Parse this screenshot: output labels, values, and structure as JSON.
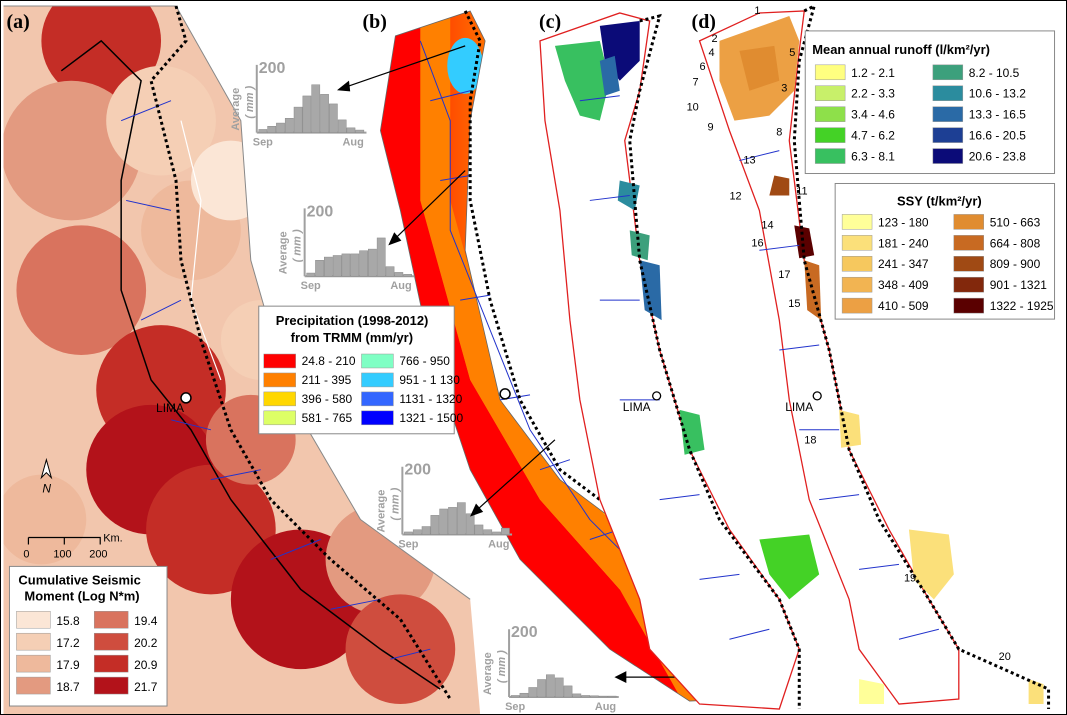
{
  "panels": {
    "a": {
      "label": "(a)"
    },
    "b": {
      "label": "(b)"
    },
    "c": {
      "label": "(c)"
    },
    "d": {
      "label": "(d)"
    }
  },
  "city": {
    "lima_a": "LIMA",
    "lima_c": "LIMA",
    "lima_d": "LIMA"
  },
  "north_arrow": {
    "label": "N"
  },
  "scale_bar": {
    "ticks": [
      "0",
      "100",
      "200"
    ],
    "unit": "Km."
  },
  "seismic_legend": {
    "title_line1": "Cumulative Seismic",
    "title_line2": "Moment (Log N*m)",
    "items": [
      {
        "label": "15.8",
        "color": "#fbe6d6"
      },
      {
        "label": "19.4",
        "color": "#d9735e"
      },
      {
        "label": "17.2",
        "color": "#f5cfb5"
      },
      {
        "label": "20.2",
        "color": "#cf4d3e"
      },
      {
        "label": "17.9",
        "color": "#eeb99c"
      },
      {
        "label": "20.9",
        "color": "#c42d26"
      },
      {
        "label": "18.7",
        "color": "#e39a80"
      },
      {
        "label": "21.7",
        "color": "#b3121a"
      }
    ]
  },
  "precip_legend": {
    "title_line1": "Precipitation (1998-2012)",
    "title_line2": "from TRMM (mm/yr)",
    "items": [
      {
        "label": "24.8 - 210",
        "color": "#ff0000"
      },
      {
        "label": "766 - 950",
        "color": "#7fffc4"
      },
      {
        "label": "211 - 395",
        "color": "#ff8000"
      },
      {
        "label": "951 - 1 130",
        "color": "#33ccff"
      },
      {
        "label": "396 - 580",
        "color": "#ffd700"
      },
      {
        "label": "1131 - 1320",
        "color": "#3366ff"
      },
      {
        "label": "581 - 765",
        "color": "#ddff66"
      },
      {
        "label": "1321 - 1500",
        "color": "#0000ff"
      }
    ]
  },
  "runoff_legend": {
    "title": "Mean annual runoff (l/km²/yr)",
    "items": [
      {
        "label": "1.2 - 2.1",
        "color": "#ffff80"
      },
      {
        "label": "8.2 - 10.5",
        "color": "#3ca07c"
      },
      {
        "label": "2.2 - 3.3",
        "color": "#c8f06a"
      },
      {
        "label": "10.6 - 13.2",
        "color": "#2b8c9e"
      },
      {
        "label": "3.4 - 4.6",
        "color": "#8ee04a"
      },
      {
        "label": "13.3 - 16.5",
        "color": "#2a6aa6"
      },
      {
        "label": "4.7 - 6.2",
        "color": "#44d226"
      },
      {
        "label": "16.6 - 20.5",
        "color": "#1d3f94"
      },
      {
        "label": "6.3 - 8.1",
        "color": "#38c060"
      },
      {
        "label": "20.6 - 23.8",
        "color": "#0b0b78"
      }
    ]
  },
  "ssy_legend": {
    "title": "SSY (t/km²/yr)",
    "items": [
      {
        "label": "123 - 180",
        "color": "#ffff99"
      },
      {
        "label": "510 - 663",
        "color": "#e08c30"
      },
      {
        "label": "181 - 240",
        "color": "#fbe07a"
      },
      {
        "label": "664 - 808",
        "color": "#c86a22"
      },
      {
        "label": "241 - 347",
        "color": "#f6c85e"
      },
      {
        "label": "809 - 900",
        "color": "#a04a14"
      },
      {
        "label": "348 - 409",
        "color": "#f2b452"
      },
      {
        "label": "901 - 1321",
        "color": "#82280c"
      },
      {
        "label": "410 - 509",
        "color": "#eca044"
      },
      {
        "label": "1322 - 1925",
        "color": "#5a0000"
      }
    ]
  },
  "histograms": {
    "max_label": "200",
    "y_label": "Average",
    "unit_label": "( mm )",
    "x_start": "Sep",
    "x_end": "Aug",
    "h1": [
      10,
      20,
      30,
      45,
      80,
      115,
      150,
      120,
      90,
      40,
      15,
      8
    ],
    "h2": [
      10,
      50,
      60,
      65,
      70,
      70,
      80,
      85,
      120,
      30,
      12,
      6
    ],
    "h3": [
      8,
      15,
      25,
      60,
      80,
      85,
      100,
      65,
      30,
      15,
      8,
      20
    ],
    "h4": [
      5,
      12,
      30,
      55,
      70,
      60,
      35,
      10,
      5,
      4,
      3,
      3
    ]
  },
  "basin_numbers": [
    "1",
    "2",
    "3",
    "4",
    "5",
    "6",
    "7",
    "8",
    "9",
    "10",
    "11",
    "12",
    "13",
    "14",
    "15",
    "16",
    "17",
    "18",
    "19",
    "20"
  ]
}
